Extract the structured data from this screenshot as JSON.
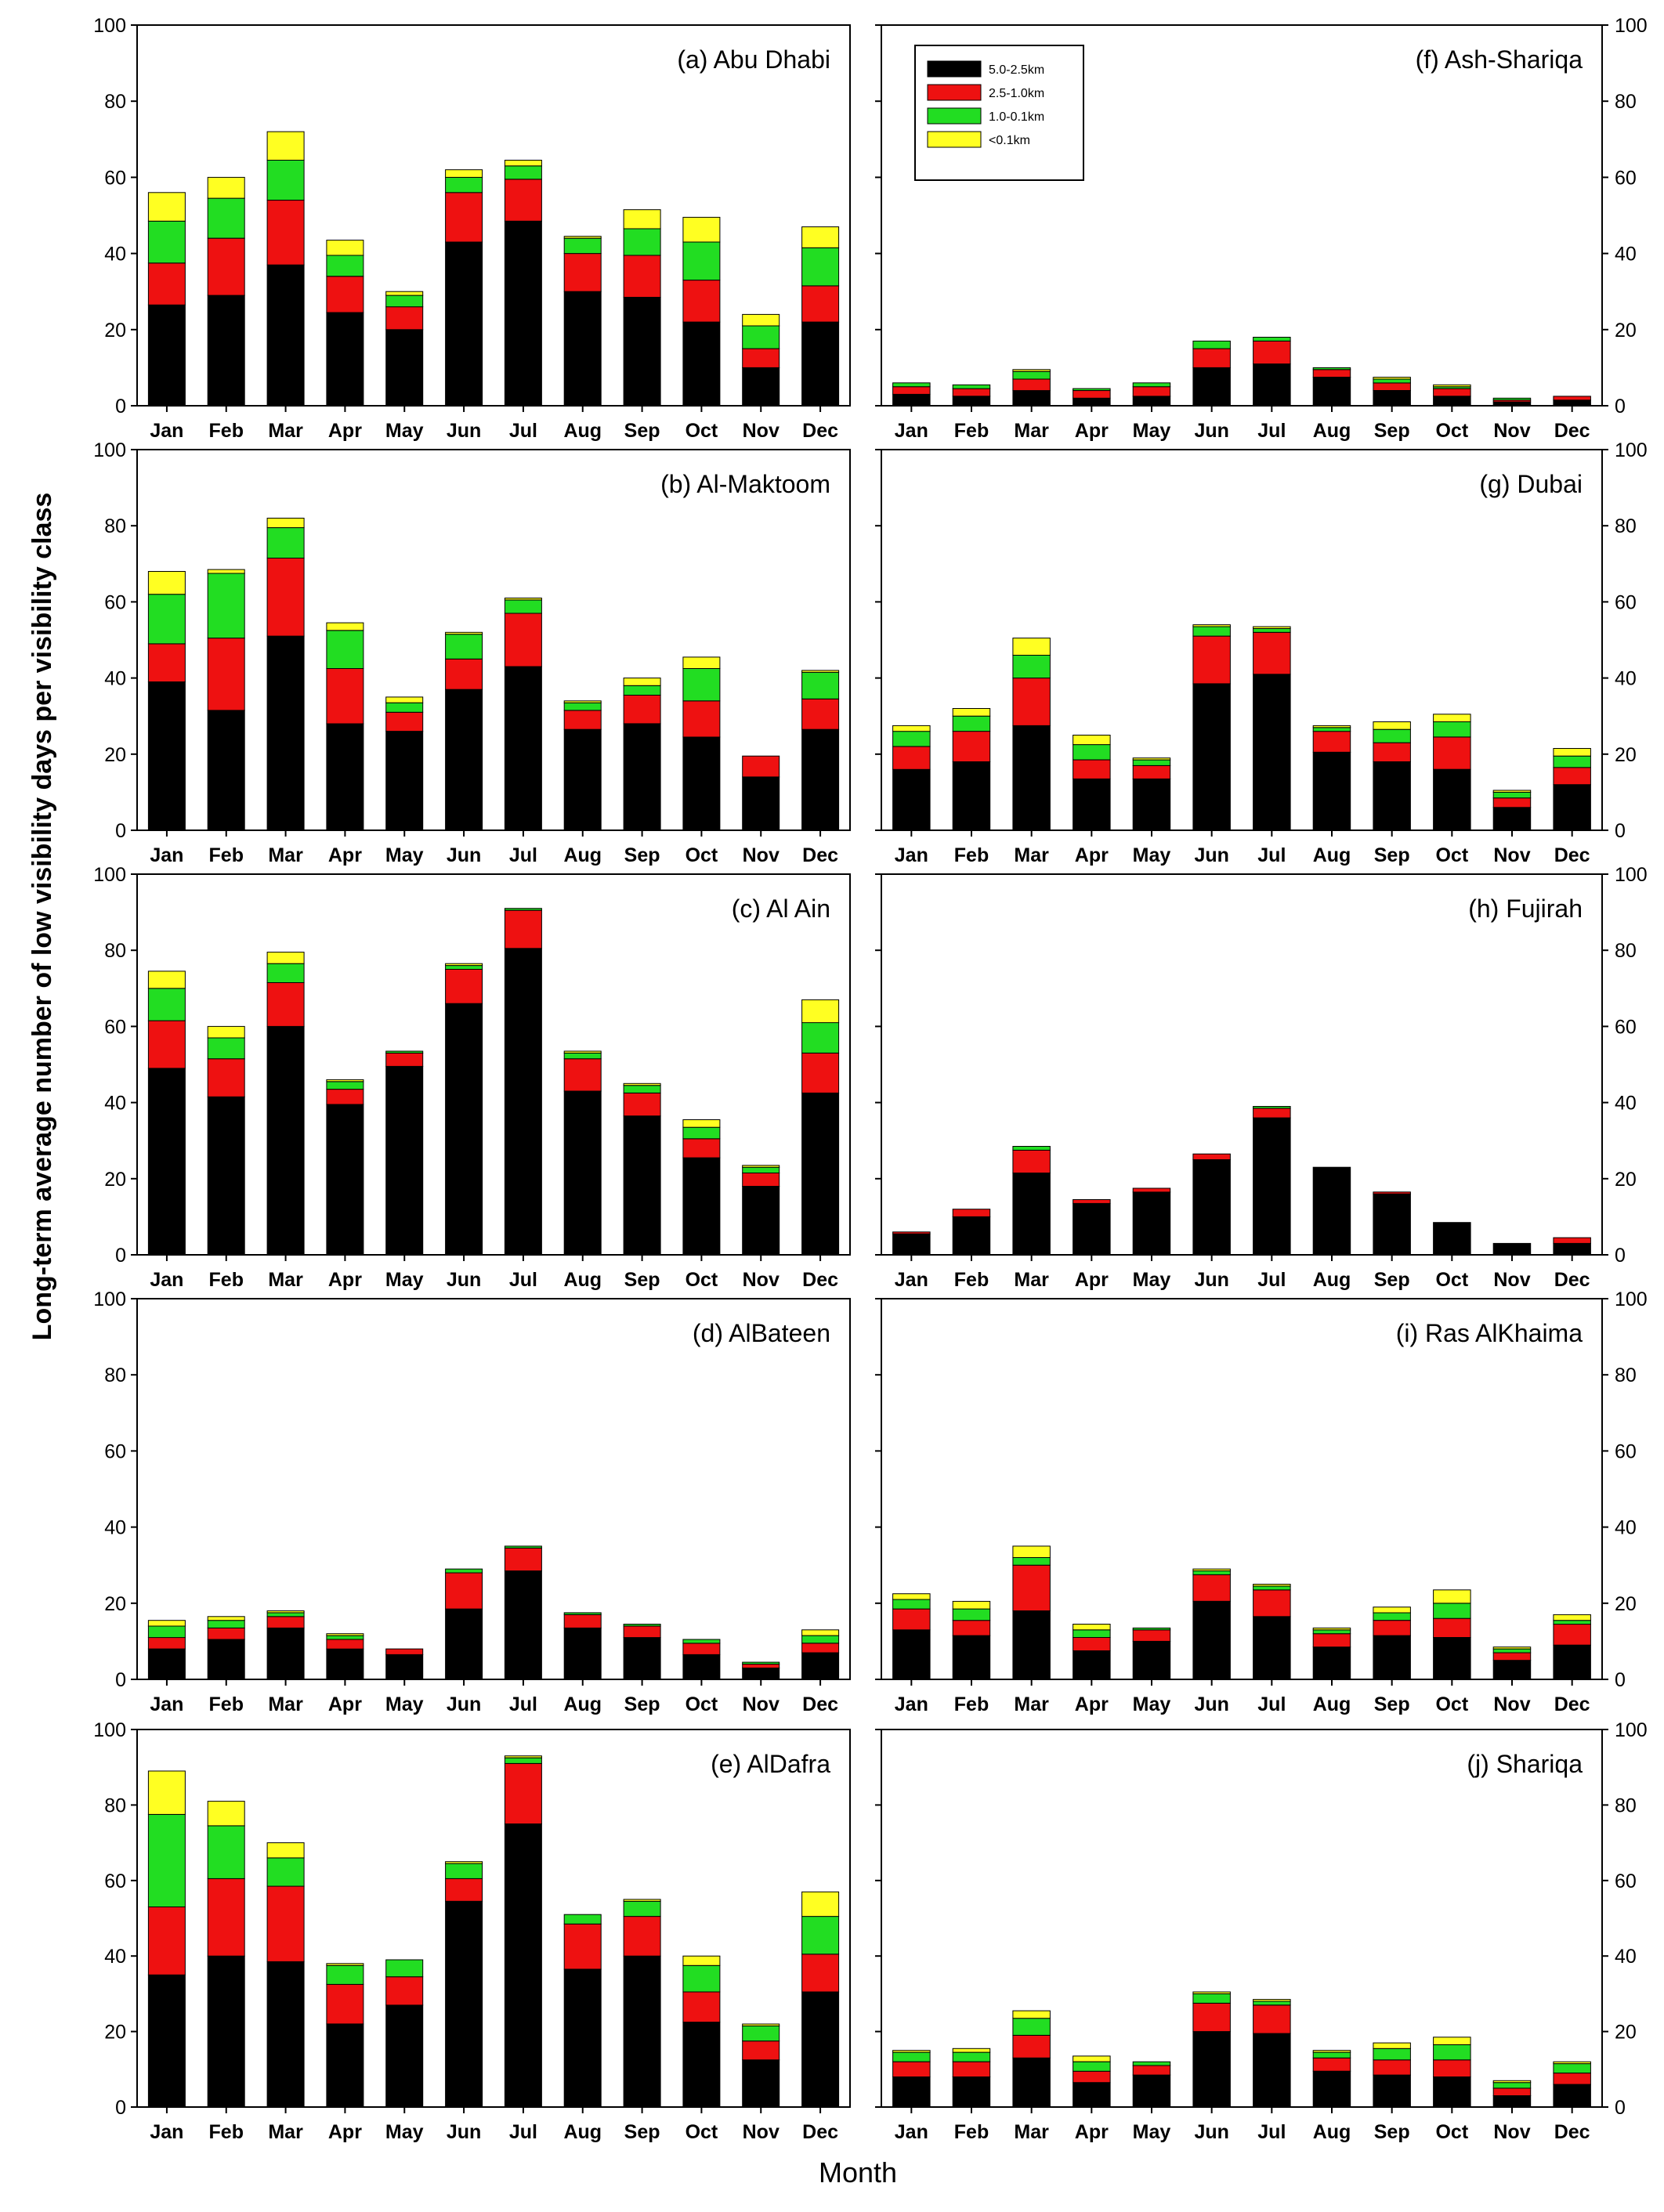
{
  "figure": {
    "ylabel": "Long-term average number of low visibility days per visibility class",
    "xlabel": "Month"
  },
  "legend": [
    {
      "label": "5.0-2.5km",
      "color": "#000000"
    },
    {
      "label": "2.5-1.0km",
      "color": "#ee1111"
    },
    {
      "label": "1.0-0.1km",
      "color": "#22dd22"
    },
    {
      "label": "<0.1km",
      "color": "#ffff22"
    }
  ],
  "chart_data": [
    {
      "id": "a",
      "title": "(a) Abu Dhabi",
      "type": "bar",
      "stacked": true,
      "ylim": [
        0,
        100
      ],
      "yticks": [
        0,
        20,
        40,
        60,
        80,
        100
      ],
      "categories": [
        "Jan",
        "Feb",
        "Mar",
        "Apr",
        "May",
        "Jun",
        "Jul",
        "Aug",
        "Sep",
        "Oct",
        "Nov",
        "Dec"
      ],
      "series": [
        {
          "name": "5.0-2.5km",
          "values": [
            26.5,
            29,
            37,
            24.5,
            20,
            43,
            48.5,
            30,
            28.5,
            22,
            10,
            22
          ]
        },
        {
          "name": "2.5-1.0km",
          "values": [
            11,
            15,
            17,
            9.5,
            6,
            13,
            11,
            10,
            11,
            11,
            5,
            9.5
          ]
        },
        {
          "name": "1.0-0.1km",
          "values": [
            11,
            10.5,
            10.5,
            5.5,
            3,
            4,
            3.5,
            4,
            7,
            10,
            6,
            10
          ]
        },
        {
          "name": "<0.1km",
          "values": [
            7.5,
            5.5,
            7.5,
            4,
            1,
            2,
            1.5,
            0.5,
            5,
            6.5,
            3,
            5.5
          ]
        }
      ]
    },
    {
      "id": "b",
      "title": "(b) Al-Maktoom",
      "type": "bar",
      "stacked": true,
      "ylim": [
        0,
        100
      ],
      "yticks": [
        0,
        20,
        40,
        60,
        80,
        100
      ],
      "categories": [
        "Jan",
        "Feb",
        "Mar",
        "Apr",
        "May",
        "Jun",
        "Jul",
        "Aug",
        "Sep",
        "Oct",
        "Nov",
        "Dec"
      ],
      "series": [
        {
          "name": "5.0-2.5km",
          "values": [
            39,
            31.5,
            51,
            28,
            26,
            37,
            43,
            26.5,
            28,
            24.5,
            14,
            26.5
          ]
        },
        {
          "name": "2.5-1.0km",
          "values": [
            10,
            19,
            20.5,
            14.5,
            5,
            8,
            14,
            5,
            7.5,
            9.5,
            5.5,
            8
          ]
        },
        {
          "name": "1.0-0.1km",
          "values": [
            13,
            17,
            8,
            10,
            2.5,
            6.5,
            3.5,
            2,
            2.5,
            8.5,
            0,
            7
          ]
        },
        {
          "name": "<0.1km",
          "values": [
            6,
            1,
            2.5,
            2,
            1.5,
            0.5,
            0.5,
            0.5,
            2,
            3,
            0,
            0.5
          ]
        }
      ]
    },
    {
      "id": "c",
      "title": "(c) Al Ain",
      "type": "bar",
      "stacked": true,
      "ylim": [
        0,
        100
      ],
      "yticks": [
        0,
        20,
        40,
        60,
        80,
        100
      ],
      "categories": [
        "Jan",
        "Feb",
        "Mar",
        "Apr",
        "May",
        "Jun",
        "Jul",
        "Aug",
        "Sep",
        "Oct",
        "Nov",
        "Dec"
      ],
      "series": [
        {
          "name": "5.0-2.5km",
          "values": [
            49,
            41.5,
            60,
            39.5,
            49.5,
            66,
            80.5,
            43,
            36.5,
            25.5,
            18,
            42.5
          ]
        },
        {
          "name": "2.5-1.0km",
          "values": [
            12.5,
            10,
            11.5,
            4,
            3.5,
            9,
            10,
            8.5,
            6,
            5,
            3.5,
            10.5
          ]
        },
        {
          "name": "1.0-0.1km",
          "values": [
            8.5,
            5.5,
            5,
            2,
            0.5,
            1,
            0.5,
            1.5,
            2,
            3,
            1.5,
            8
          ]
        },
        {
          "name": "<0.1km",
          "values": [
            4.5,
            3,
            3,
            0.5,
            0,
            0.5,
            0,
            0.5,
            0.5,
            2,
            0.5,
            6
          ]
        }
      ]
    },
    {
      "id": "d",
      "title": "(d) AlBateen",
      "type": "bar",
      "stacked": true,
      "ylim": [
        0,
        100
      ],
      "yticks": [
        0,
        20,
        40,
        60,
        80,
        100
      ],
      "categories": [
        "Jan",
        "Feb",
        "Mar",
        "Apr",
        "May",
        "Jun",
        "Jul",
        "Aug",
        "Sep",
        "Oct",
        "Nov",
        "Dec"
      ],
      "series": [
        {
          "name": "5.0-2.5km",
          "values": [
            8,
            10.5,
            13.5,
            8,
            6.5,
            18.5,
            28.5,
            13.5,
            11,
            6.5,
            3,
            7
          ]
        },
        {
          "name": "2.5-1.0km",
          "values": [
            3,
            3,
            3,
            2.5,
            1.5,
            9.5,
            6,
            3.5,
            3,
            3,
            1,
            2.5
          ]
        },
        {
          "name": "1.0-0.1km",
          "values": [
            3,
            2,
            1,
            1,
            0,
            1,
            0.5,
            0.5,
            0.5,
            1,
            0.5,
            2
          ]
        },
        {
          "name": "<0.1km",
          "values": [
            1.5,
            1,
            0.5,
            0.5,
            0,
            0,
            0,
            0,
            0,
            0,
            0,
            1.5
          ]
        }
      ]
    },
    {
      "id": "e",
      "title": "(e) AlDafra",
      "type": "bar",
      "stacked": true,
      "ylim": [
        0,
        100
      ],
      "yticks": [
        0,
        20,
        40,
        60,
        80,
        100
      ],
      "categories": [
        "Jan",
        "Feb",
        "Mar",
        "Apr",
        "May",
        "Jun",
        "Jul",
        "Aug",
        "Sep",
        "Oct",
        "Nov",
        "Dec"
      ],
      "series": [
        {
          "name": "5.0-2.5km",
          "values": [
            35,
            40,
            38.5,
            22,
            27,
            54.5,
            75,
            36.5,
            40,
            22.5,
            12.5,
            30.5
          ]
        },
        {
          "name": "2.5-1.0km",
          "values": [
            18,
            20.5,
            20,
            10.5,
            7.5,
            6,
            16,
            12,
            10.5,
            8,
            5,
            10
          ]
        },
        {
          "name": "1.0-0.1km",
          "values": [
            24.5,
            14,
            7.5,
            5,
            4.5,
            4,
            1.5,
            2.5,
            4,
            7,
            4,
            10
          ]
        },
        {
          "name": "<0.1km",
          "values": [
            11.5,
            6.5,
            4,
            0.5,
            0,
            0.5,
            0.5,
            0,
            0.5,
            2.5,
            0.5,
            6.5
          ]
        }
      ]
    },
    {
      "id": "f",
      "title": "(f) Ash-Shariqa",
      "type": "bar",
      "stacked": true,
      "ylim": [
        0,
        100
      ],
      "yticks": [
        0,
        20,
        40,
        60,
        80,
        100
      ],
      "categories": [
        "Jan",
        "Feb",
        "Mar",
        "Apr",
        "May",
        "Jun",
        "Jul",
        "Aug",
        "Sep",
        "Oct",
        "Nov",
        "Dec"
      ],
      "series": [
        {
          "name": "5.0-2.5km",
          "values": [
            3,
            2.5,
            4,
            2,
            2.5,
            10,
            11,
            7.5,
            4,
            2.5,
            1,
            1.5
          ]
        },
        {
          "name": "2.5-1.0km",
          "values": [
            2,
            2,
            3,
            2,
            2.5,
            5,
            6,
            2,
            2,
            2,
            0.5,
            1
          ]
        },
        {
          "name": "1.0-0.1km",
          "values": [
            1,
            1,
            2,
            0.5,
            1,
            2,
            1,
            0.5,
            1,
            0.5,
            0.5,
            0
          ]
        },
        {
          "name": "<0.1km",
          "values": [
            0,
            0,
            0.5,
            0,
            0,
            0,
            0,
            0,
            0.5,
            0.5,
            0,
            0
          ]
        }
      ]
    },
    {
      "id": "g",
      "title": "(g) Dubai",
      "type": "bar",
      "stacked": true,
      "ylim": [
        0,
        100
      ],
      "yticks": [
        0,
        20,
        40,
        60,
        80,
        100
      ],
      "categories": [
        "Jan",
        "Feb",
        "Mar",
        "Apr",
        "May",
        "Jun",
        "Jul",
        "Aug",
        "Sep",
        "Oct",
        "Nov",
        "Dec"
      ],
      "series": [
        {
          "name": "5.0-2.5km",
          "values": [
            16,
            18,
            27.5,
            13.5,
            13.5,
            38.5,
            41,
            20.5,
            18,
            16,
            6,
            12
          ]
        },
        {
          "name": "2.5-1.0km",
          "values": [
            6,
            8,
            12.5,
            5,
            3.5,
            12.5,
            11,
            5.5,
            5,
            8.5,
            2.5,
            4.5
          ]
        },
        {
          "name": "1.0-0.1km",
          "values": [
            4,
            4,
            6,
            4,
            1.5,
            2.5,
            1,
            1,
            3.5,
            4,
            1.5,
            3
          ]
        },
        {
          "name": "<0.1km",
          "values": [
            1.5,
            2,
            4.5,
            2.5,
            0.5,
            0.5,
            0.5,
            0.5,
            2,
            2,
            0.5,
            2
          ]
        }
      ]
    },
    {
      "id": "h",
      "title": "(h) Fujirah",
      "type": "bar",
      "stacked": true,
      "ylim": [
        0,
        100
      ],
      "yticks": [
        0,
        20,
        40,
        60,
        80,
        100
      ],
      "categories": [
        "Jan",
        "Feb",
        "Mar",
        "Apr",
        "May",
        "Jun",
        "Jul",
        "Aug",
        "Sep",
        "Oct",
        "Nov",
        "Dec"
      ],
      "series": [
        {
          "name": "5.0-2.5km",
          "values": [
            5.5,
            10,
            21.5,
            13.5,
            16.5,
            25,
            36,
            23,
            16,
            8.5,
            3,
            3
          ]
        },
        {
          "name": "2.5-1.0km",
          "values": [
            0.5,
            2,
            6,
            1,
            1,
            1.5,
            2.5,
            0,
            0.5,
            0,
            0,
            1.5
          ]
        },
        {
          "name": "1.0-0.1km",
          "values": [
            0,
            0,
            1,
            0,
            0,
            0,
            0.5,
            0,
            0,
            0,
            0,
            0
          ]
        },
        {
          "name": "<0.1km",
          "values": [
            0,
            0,
            0,
            0,
            0,
            0,
            0,
            0,
            0,
            0,
            0,
            0
          ]
        }
      ]
    },
    {
      "id": "i",
      "title": "(i) Ras AlKhaima",
      "type": "bar",
      "stacked": true,
      "ylim": [
        0,
        100
      ],
      "yticks": [
        0,
        20,
        40,
        60,
        80,
        100
      ],
      "categories": [
        "Jan",
        "Feb",
        "Mar",
        "Apr",
        "May",
        "Jun",
        "Jul",
        "Aug",
        "Sep",
        "Oct",
        "Nov",
        "Dec"
      ],
      "series": [
        {
          "name": "5.0-2.5km",
          "values": [
            13,
            11.5,
            18,
            7.5,
            10,
            20.5,
            16.5,
            8.5,
            11.5,
            11,
            5,
            9
          ]
        },
        {
          "name": "2.5-1.0km",
          "values": [
            5.5,
            4,
            12,
            3.5,
            3,
            7,
            7,
            3.5,
            4,
            5,
            2,
            5.5
          ]
        },
        {
          "name": "1.0-0.1km",
          "values": [
            2.5,
            3,
            2,
            2,
            0.5,
            1,
            1,
            1,
            2,
            4,
            1,
            1
          ]
        },
        {
          "name": "<0.1km",
          "values": [
            1.5,
            2,
            3,
            1.5,
            0,
            0.5,
            0.5,
            0.5,
            1.5,
            3.5,
            0.5,
            1.5
          ]
        }
      ]
    },
    {
      "id": "j",
      "title": "(j) Shariqa",
      "type": "bar",
      "stacked": true,
      "ylim": [
        0,
        100
      ],
      "yticks": [
        0,
        20,
        40,
        60,
        80,
        100
      ],
      "categories": [
        "Jan",
        "Feb",
        "Mar",
        "Apr",
        "May",
        "Jun",
        "Jul",
        "Aug",
        "Sep",
        "Oct",
        "Nov",
        "Dec"
      ],
      "series": [
        {
          "name": "5.0-2.5km",
          "values": [
            8,
            8,
            13,
            6.5,
            8.5,
            20,
            19.5,
            9.5,
            8.5,
            8,
            3,
            6
          ]
        },
        {
          "name": "2.5-1.0km",
          "values": [
            4,
            4,
            6,
            3,
            2.5,
            7.5,
            7.5,
            3.5,
            4,
            4.5,
            2,
            3
          ]
        },
        {
          "name": "1.0-0.1km",
          "values": [
            2.5,
            2.5,
            4.5,
            2.5,
            1,
            2.5,
            1,
            1.5,
            3,
            4,
            1.5,
            2.5
          ]
        },
        {
          "name": "<0.1km",
          "values": [
            0.5,
            1,
            2,
            1.5,
            0,
            0.5,
            0.5,
            0.5,
            1.5,
            2,
            0.5,
            0.5
          ]
        }
      ]
    }
  ]
}
